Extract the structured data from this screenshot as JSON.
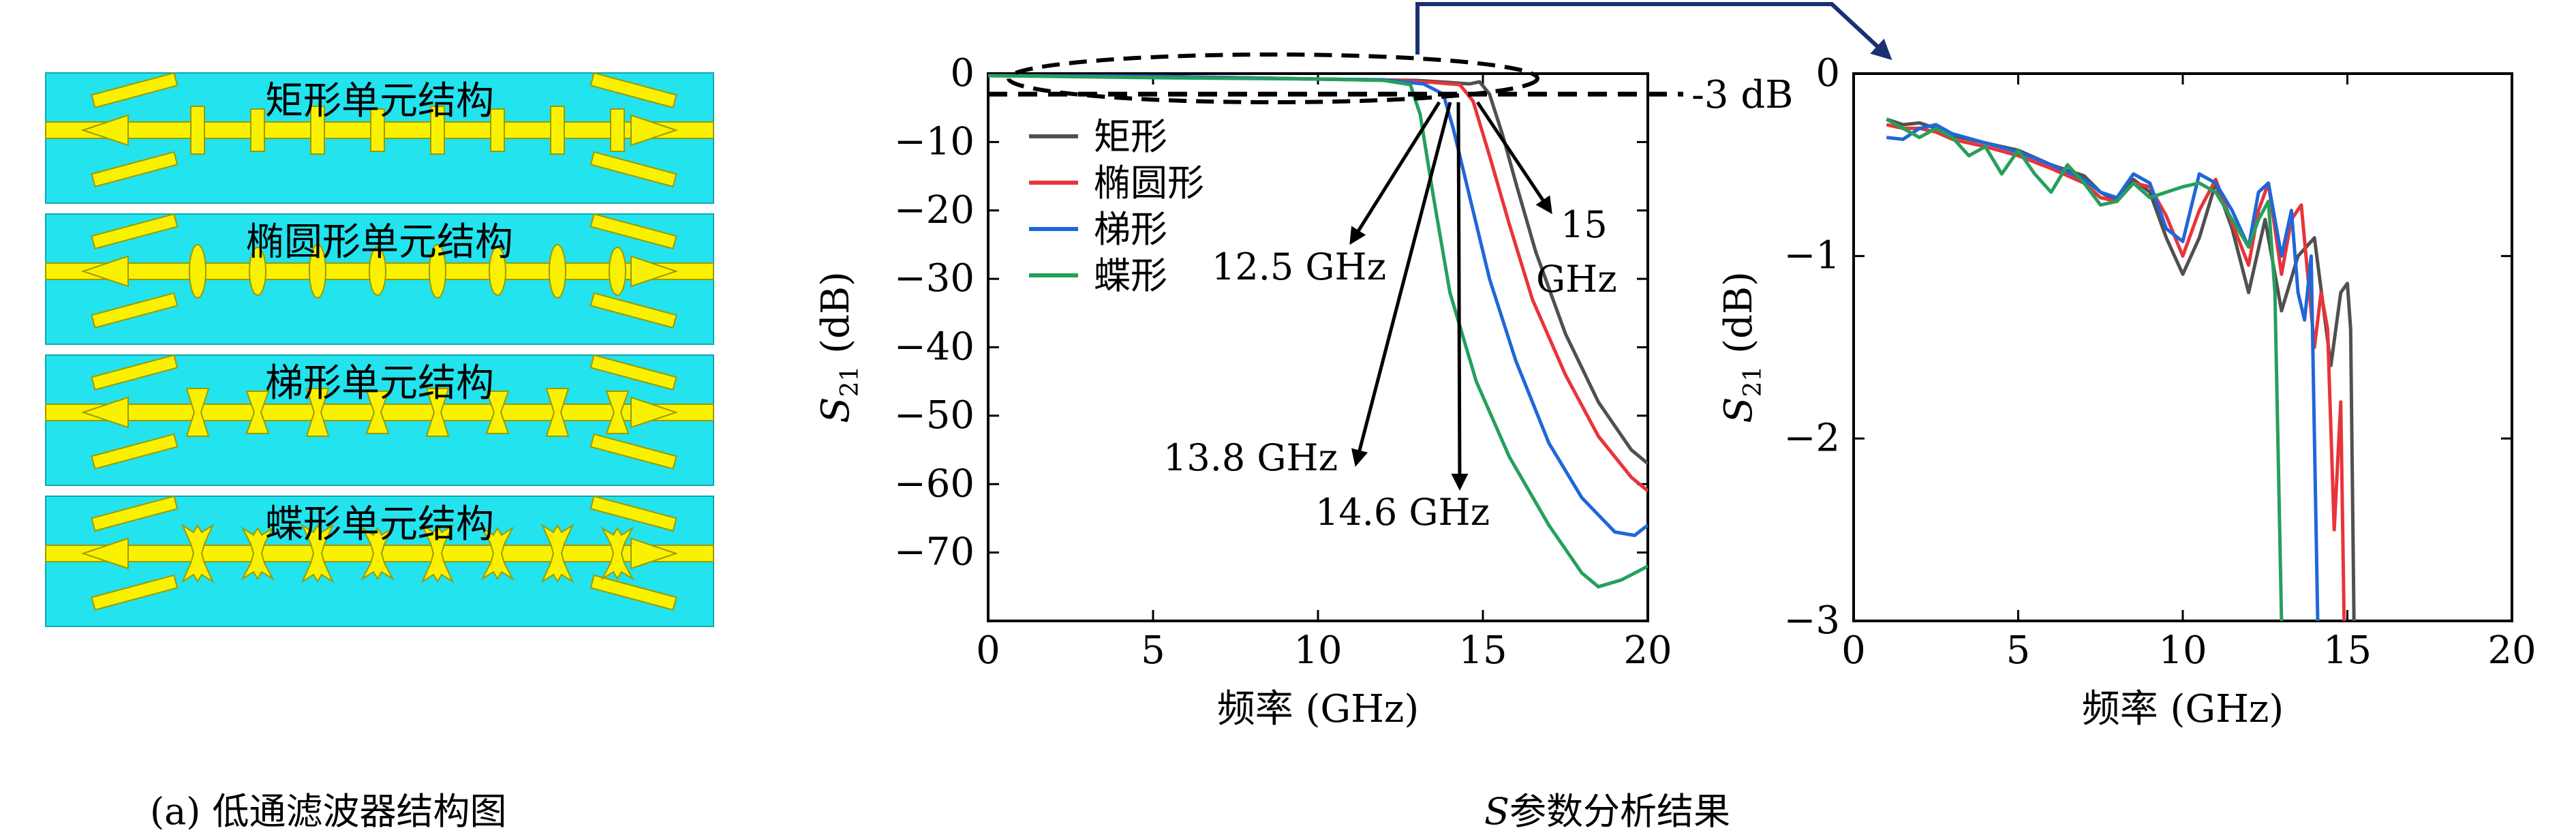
{
  "panel_a": {
    "structures": [
      {
        "label": "矩形单元结构",
        "stub_shape": "rect"
      },
      {
        "label": "椭圆形单元结构",
        "stub_shape": "ellipse"
      },
      {
        "label": "梯形单元结构",
        "stub_shape": "trapezoid"
      },
      {
        "label": "蝶形单元结构",
        "stub_shape": "butterfly"
      }
    ],
    "colors": {
      "substrate": "#22E3EE",
      "metal": "#FAF100",
      "metal_edge": "#9C9A00"
    },
    "caption": "(a) 低通滤波器结构图"
  },
  "panel_b": {
    "caption_italic": "S",
    "caption_rest": "参数分析结果",
    "legend_items": [
      {
        "name": "矩形",
        "color": "#505050"
      },
      {
        "name": "椭圆形",
        "color": "#E8343A"
      },
      {
        "name": "梯形",
        "color": "#1F67D8"
      },
      {
        "name": "蝶形",
        "color": "#25A05C"
      }
    ],
    "annotations": [
      "12.5 GHz",
      "13.8 GHz",
      "14.6 GHz",
      "15",
      "GHz"
    ],
    "ref_line_label": "-3 dB"
  },
  "chart_data": [
    {
      "type": "line",
      "xlabel": "频率 (GHz)",
      "ylabel_main": "S",
      "ylabel_sub": "21",
      "ylabel_unit": "(dB)",
      "xlim": [
        0,
        20
      ],
      "ylim": [
        -80,
        0
      ],
      "xticks": [
        0,
        5,
        10,
        15,
        20
      ],
      "yticks": [
        0,
        -10,
        -20,
        -30,
        -40,
        -50,
        -60,
        -70
      ],
      "grid": false,
      "legend_position": "upper-left",
      "reference_line": {
        "y": -3,
        "label": "-3 dB"
      },
      "series": [
        {
          "name": "矩形",
          "color": "#505050",
          "x": [
            0,
            5,
            10,
            13,
            14,
            14.6,
            14.9,
            15.2,
            15.6,
            16,
            16.6,
            17.5,
            18.5,
            19.5,
            20
          ],
          "y": [
            -0.3,
            -0.4,
            -0.8,
            -1.0,
            -1.3,
            -1.5,
            -1.2,
            -3,
            -9,
            -16,
            -26,
            -38,
            -48,
            -55,
            -57
          ]
        },
        {
          "name": "椭圆形",
          "color": "#E8343A",
          "x": [
            0,
            5,
            10,
            12.5,
            13.5,
            14.3,
            14.7,
            15.2,
            15.8,
            16.5,
            17.5,
            18.5,
            19.5,
            20
          ],
          "y": [
            -0.3,
            -0.4,
            -0.8,
            -1.0,
            -1.3,
            -1.6,
            -4,
            -12,
            -22,
            -33,
            -44,
            -53,
            -59,
            -61
          ]
        },
        {
          "name": "梯形",
          "color": "#1F67D8",
          "x": [
            0,
            5,
            10,
            12,
            13.2,
            13.8,
            14.1,
            14.6,
            15.2,
            16,
            17,
            18,
            19,
            19.6,
            20
          ],
          "y": [
            -0.3,
            -0.4,
            -0.8,
            -0.9,
            -1.5,
            -3,
            -8,
            -18,
            -30,
            -42,
            -54,
            -62,
            -67,
            -67.5,
            -66
          ]
        },
        {
          "name": "蝶形",
          "color": "#25A05C",
          "x": [
            0,
            5,
            10,
            12,
            12.8,
            13.1,
            13.5,
            14,
            14.8,
            15.8,
            17,
            18,
            18.5,
            19.2,
            20
          ],
          "y": [
            -0.3,
            -0.6,
            -0.8,
            -1.0,
            -1.6,
            -6,
            -18,
            -32,
            -45,
            -56,
            -66,
            -73,
            -75,
            -74,
            -72
          ]
        }
      ]
    },
    {
      "type": "line",
      "xlabel": "频率 (GHz)",
      "ylabel_main": "S",
      "ylabel_sub": "21",
      "ylabel_unit": "(dB)",
      "xlim": [
        0,
        20
      ],
      "ylim": [
        -3,
        0
      ],
      "xticks": [
        0,
        5,
        10,
        15,
        20
      ],
      "yticks": [
        0,
        -1,
        -2,
        -3
      ],
      "grid": false,
      "series": [
        {
          "name": "矩形",
          "color": "#505050",
          "x": [
            1,
            1.5,
            2,
            2.5,
            3,
            4,
            5,
            6,
            7,
            7.5,
            8,
            8.5,
            9,
            9.5,
            10,
            10.5,
            11,
            11.5,
            12,
            12.5,
            13,
            13.5,
            14,
            14.5,
            14.8,
            15,
            15.1,
            15.2
          ],
          "y": [
            -0.25,
            -0.28,
            -0.27,
            -0.3,
            -0.34,
            -0.38,
            -0.42,
            -0.5,
            -0.56,
            -0.65,
            -0.7,
            -0.58,
            -0.65,
            -0.9,
            -1.1,
            -0.9,
            -0.6,
            -0.85,
            -1.2,
            -0.8,
            -1.3,
            -1.0,
            -0.9,
            -1.6,
            -1.2,
            -1.15,
            -1.4,
            -3
          ]
        },
        {
          "name": "椭圆形",
          "color": "#E8343A",
          "x": [
            1,
            1.5,
            2,
            2.5,
            3,
            4,
            5,
            6,
            7,
            7.5,
            8,
            8.5,
            9,
            9.5,
            10,
            10.5,
            11,
            11.5,
            12,
            12.3,
            12.6,
            13,
            13.3,
            13.6,
            14,
            14.2,
            14.4,
            14.6,
            14.8,
            14.9
          ],
          "y": [
            -0.28,
            -0.3,
            -0.3,
            -0.32,
            -0.36,
            -0.4,
            -0.45,
            -0.52,
            -0.6,
            -0.68,
            -0.7,
            -0.6,
            -0.62,
            -0.78,
            -1.0,
            -0.75,
            -0.58,
            -0.82,
            -1.05,
            -0.75,
            -0.6,
            -1.1,
            -0.8,
            -0.72,
            -1.5,
            -1.2,
            -1.4,
            -2.5,
            -1.8,
            -3
          ]
        },
        {
          "name": "梯形",
          "color": "#1F67D8",
          "x": [
            1,
            1.5,
            2,
            2.5,
            3,
            4,
            5,
            6,
            7,
            7.5,
            8,
            8.5,
            9,
            9.5,
            10,
            10.5,
            11,
            11.5,
            12,
            12.3,
            12.6,
            13,
            13.3,
            13.5,
            13.7,
            13.9,
            14.1
          ],
          "y": [
            -0.35,
            -0.36,
            -0.3,
            -0.28,
            -0.33,
            -0.38,
            -0.43,
            -0.5,
            -0.58,
            -0.65,
            -0.68,
            -0.55,
            -0.6,
            -0.85,
            -0.92,
            -0.55,
            -0.6,
            -0.75,
            -0.95,
            -0.65,
            -0.6,
            -1.0,
            -0.75,
            -1.2,
            -1.35,
            -1.0,
            -3
          ]
        },
        {
          "name": "蝶形",
          "color": "#25A05C",
          "x": [
            1,
            1.5,
            2,
            2.5,
            3,
            3.5,
            4,
            4.5,
            5,
            5.5,
            6,
            6.5,
            7,
            7.5,
            8,
            8.5,
            9,
            9.5,
            10,
            10.5,
            11,
            11.5,
            12,
            12.3,
            12.6,
            12.8,
            13
          ],
          "y": [
            -0.25,
            -0.3,
            -0.35,
            -0.3,
            -0.35,
            -0.45,
            -0.4,
            -0.55,
            -0.42,
            -0.55,
            -0.65,
            -0.5,
            -0.6,
            -0.72,
            -0.7,
            -0.6,
            -0.68,
            -0.65,
            -0.62,
            -0.6,
            -0.65,
            -0.8,
            -0.95,
            -0.8,
            -0.7,
            -1.2,
            -3
          ]
        }
      ]
    }
  ]
}
